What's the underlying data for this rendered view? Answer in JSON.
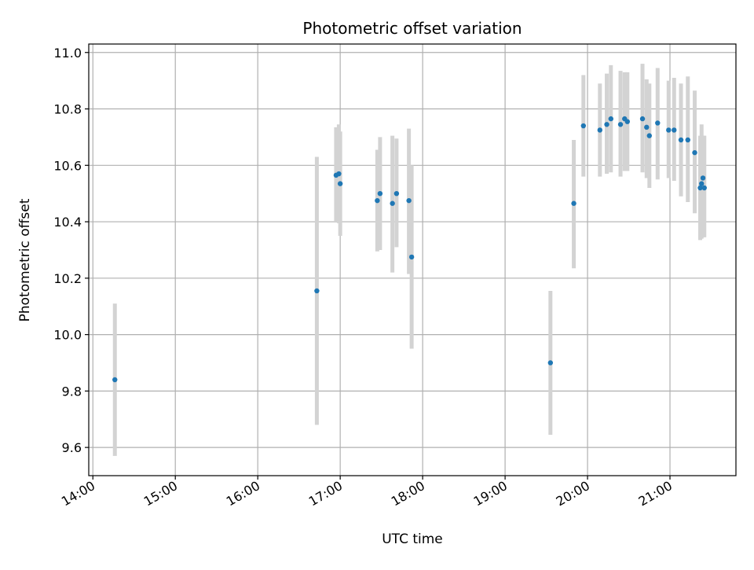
{
  "chart_data": {
    "type": "scatter",
    "title": "Photometric offset variation",
    "xlabel": "UTC time",
    "ylabel": "Photometric offset",
    "x_axis": "time",
    "xlim": [
      "13:57",
      "21:48"
    ],
    "ylim": [
      9.5,
      11.03
    ],
    "xticks": [
      "14:00",
      "15:00",
      "16:00",
      "17:00",
      "18:00",
      "19:00",
      "20:00",
      "21:00"
    ],
    "yticks": [
      9.6,
      9.8,
      10.0,
      10.2,
      10.4,
      10.6,
      10.8,
      11.0
    ],
    "grid": true,
    "colors": {
      "points": "#1f77b4",
      "errorbars": "#d3d3d3"
    },
    "points": [
      {
        "t": "14:16",
        "y": 9.84,
        "low": 9.57,
        "high": 10.11
      },
      {
        "t": "16:43",
        "y": 10.155,
        "low": 9.68,
        "high": 10.63
      },
      {
        "t": "16:57",
        "y": 10.565,
        "low": 10.4,
        "high": 10.735
      },
      {
        "t": "16:59",
        "y": 10.57,
        "low": 10.395,
        "high": 10.745
      },
      {
        "t": "17:00",
        "y": 10.535,
        "low": 10.35,
        "high": 10.72
      },
      {
        "t": "17:27",
        "y": 10.475,
        "low": 10.295,
        "high": 10.655
      },
      {
        "t": "17:29",
        "y": 10.5,
        "low": 10.3,
        "high": 10.7
      },
      {
        "t": "17:38",
        "y": 10.465,
        "low": 10.22,
        "high": 10.705
      },
      {
        "t": "17:41",
        "y": 10.5,
        "low": 10.31,
        "high": 10.695
      },
      {
        "t": "17:50",
        "y": 10.475,
        "low": 10.215,
        "high": 10.73
      },
      {
        "t": "17:52",
        "y": 10.275,
        "low": 9.95,
        "high": 10.6
      },
      {
        "t": "19:33",
        "y": 9.9,
        "low": 9.645,
        "high": 10.155
      },
      {
        "t": "19:50",
        "y": 10.465,
        "low": 10.235,
        "high": 10.69
      },
      {
        "t": "19:57",
        "y": 10.74,
        "low": 10.56,
        "high": 10.92
      },
      {
        "t": "20:09",
        "y": 10.725,
        "low": 10.56,
        "high": 10.89
      },
      {
        "t": "20:14",
        "y": 10.745,
        "low": 10.57,
        "high": 10.925
      },
      {
        "t": "20:17",
        "y": 10.765,
        "low": 10.575,
        "high": 10.955
      },
      {
        "t": "20:24",
        "y": 10.745,
        "low": 10.56,
        "high": 10.935
      },
      {
        "t": "20:27",
        "y": 10.765,
        "low": 10.58,
        "high": 10.93
      },
      {
        "t": "20:29",
        "y": 10.755,
        "low": 10.58,
        "high": 10.93
      },
      {
        "t": "20:40",
        "y": 10.765,
        "low": 10.575,
        "high": 10.96
      },
      {
        "t": "20:43",
        "y": 10.735,
        "low": 10.555,
        "high": 10.905
      },
      {
        "t": "20:45",
        "y": 10.705,
        "low": 10.52,
        "high": 10.89
      },
      {
        "t": "20:51",
        "y": 10.75,
        "low": 10.55,
        "high": 10.945
      },
      {
        "t": "20:59",
        "y": 10.725,
        "low": 10.555,
        "high": 10.9
      },
      {
        "t": "21:03",
        "y": 10.725,
        "low": 10.545,
        "high": 10.91
      },
      {
        "t": "21:08",
        "y": 10.69,
        "low": 10.49,
        "high": 10.89
      },
      {
        "t": "21:13",
        "y": 10.69,
        "low": 10.47,
        "high": 10.915
      },
      {
        "t": "21:18",
        "y": 10.645,
        "low": 10.43,
        "high": 10.865
      },
      {
        "t": "21:22",
        "y": 10.52,
        "low": 10.335,
        "high": 10.705
      },
      {
        "t": "21:23",
        "y": 10.535,
        "low": 10.34,
        "high": 10.745
      },
      {
        "t": "21:24",
        "y": 10.555,
        "low": 10.345,
        "high": 10.705
      },
      {
        "t": "21:25",
        "y": 10.52,
        "low": 10.345,
        "high": 10.705
      }
    ]
  }
}
